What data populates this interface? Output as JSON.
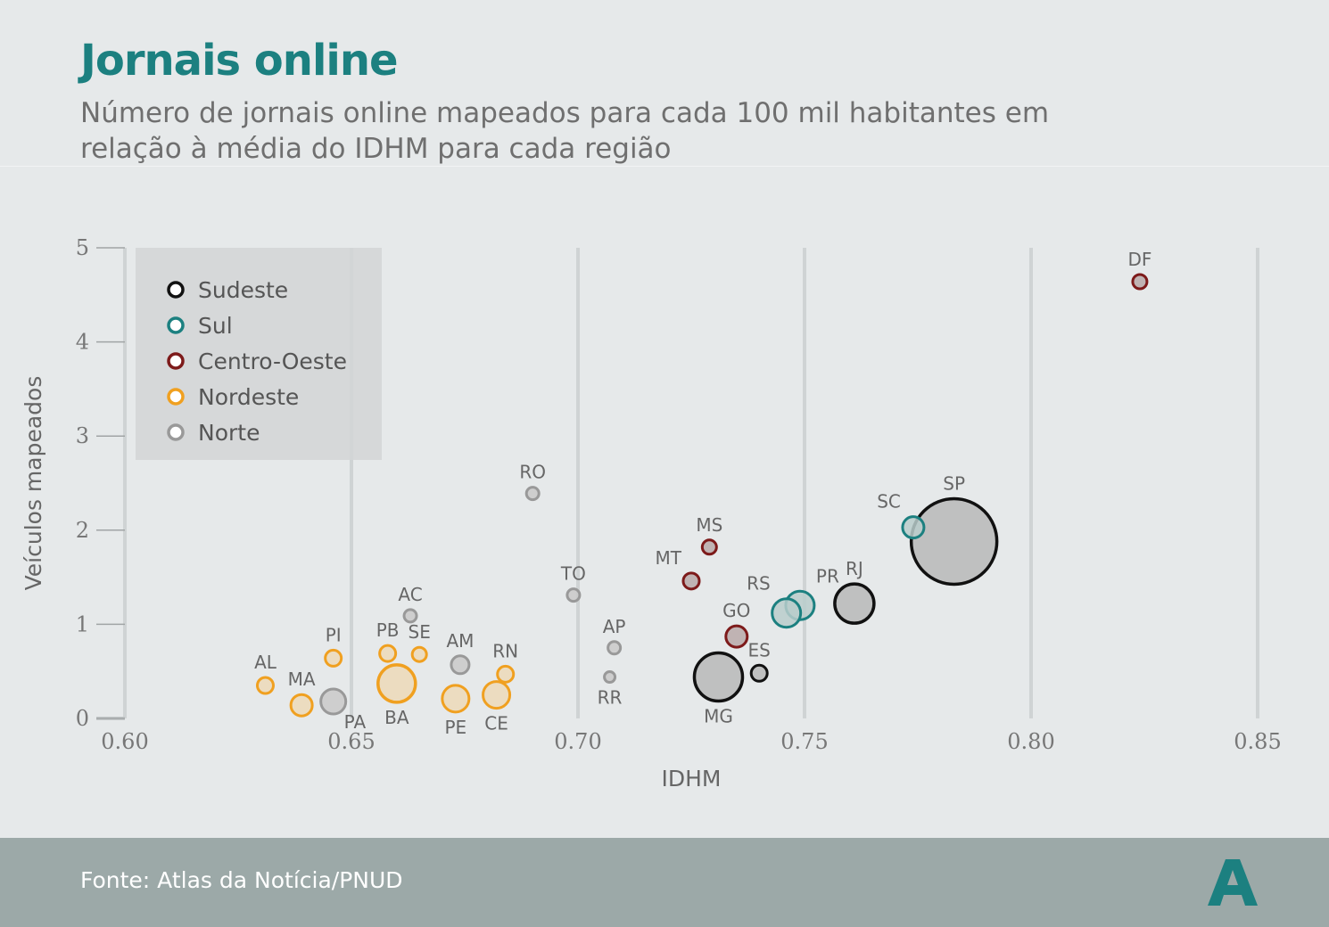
{
  "header": {
    "title": "Jornais online",
    "subtitle_lines": [
      "Número de jornais online mapeados para cada 100 mil habitantes em",
      "relação à média do IDHM para cada região"
    ]
  },
  "footer": {
    "source": "Fonte: Atlas da Notícia/PNUD",
    "logo_letter": "A",
    "logo_color": "#1c8080"
  },
  "colors": {
    "title": "#1c8080",
    "background": "#e6e9ea",
    "footer_bg": "#9ca9a8"
  },
  "chart_data": {
    "type": "scatter",
    "xlabel": "IDHM",
    "ylabel": "Veículos mapeados",
    "xlim": [
      0.6,
      0.85
    ],
    "ylim": [
      0,
      5
    ],
    "x_ticks": [
      "0.60",
      "0.65",
      "0.70",
      "0.75",
      "0.80",
      "0.85"
    ],
    "y_ticks": [
      "0",
      "1",
      "2",
      "3",
      "4",
      "5"
    ],
    "grid": "vertical",
    "legend_position": "top-left",
    "series": [
      {
        "name": "Sudeste",
        "stroke": "#111111",
        "fill": "#b7b8b8"
      },
      {
        "name": "Sul",
        "stroke": "#1c8080",
        "fill": "#b9cccb"
      },
      {
        "name": "Centro-Oeste",
        "stroke": "#7d1a1a",
        "fill": "#b8a9a9"
      },
      {
        "name": "Nordeste",
        "stroke": "#f0a020",
        "fill": "#ecd9b8"
      },
      {
        "name": "Norte",
        "stroke": "#999999",
        "fill": "#c9c9c9"
      }
    ],
    "points": [
      {
        "label": "SP",
        "region": "Sudeste",
        "x": 0.783,
        "y": 1.88,
        "size": 48,
        "label_pos": "above"
      },
      {
        "label": "RJ",
        "region": "Sudeste",
        "x": 0.761,
        "y": 1.22,
        "size": 22,
        "label_pos": "above"
      },
      {
        "label": "MG",
        "region": "Sudeste",
        "x": 0.731,
        "y": 0.44,
        "size": 27,
        "label_pos": "below"
      },
      {
        "label": "ES",
        "region": "Sudeste",
        "x": 0.74,
        "y": 0.48,
        "size": 9,
        "label_pos": "above"
      },
      {
        "label": "SC",
        "region": "Sul",
        "x": 0.774,
        "y": 2.03,
        "size": 12,
        "label_pos": "above-left"
      },
      {
        "label": "PR",
        "region": "Sul",
        "x": 0.749,
        "y": 1.2,
        "size": 16,
        "label_pos": "above-right"
      },
      {
        "label": "RS",
        "region": "Sul",
        "x": 0.746,
        "y": 1.12,
        "size": 16,
        "label_pos": "above-left"
      },
      {
        "label": "DF",
        "region": "Centro-Oeste",
        "x": 0.824,
        "y": 4.64,
        "size": 8,
        "label_pos": "above"
      },
      {
        "label": "MS",
        "region": "Centro-Oeste",
        "x": 0.729,
        "y": 1.82,
        "size": 8,
        "label_pos": "above"
      },
      {
        "label": "MT",
        "region": "Centro-Oeste",
        "x": 0.725,
        "y": 1.46,
        "size": 9,
        "label_pos": "above-left"
      },
      {
        "label": "GO",
        "region": "Centro-Oeste",
        "x": 0.735,
        "y": 0.87,
        "size": 12,
        "label_pos": "above"
      },
      {
        "label": "BA",
        "region": "Nordeste",
        "x": 0.66,
        "y": 0.37,
        "size": 21,
        "label_pos": "below"
      },
      {
        "label": "PE",
        "region": "Nordeste",
        "x": 0.673,
        "y": 0.21,
        "size": 15,
        "label_pos": "below"
      },
      {
        "label": "CE",
        "region": "Nordeste",
        "x": 0.682,
        "y": 0.25,
        "size": 15,
        "label_pos": "below"
      },
      {
        "label": "MA",
        "region": "Nordeste",
        "x": 0.639,
        "y": 0.14,
        "size": 12,
        "label_pos": "above"
      },
      {
        "label": "PB",
        "region": "Nordeste",
        "x": 0.658,
        "y": 0.69,
        "size": 9,
        "label_pos": "above"
      },
      {
        "label": "SE",
        "region": "Nordeste",
        "x": 0.665,
        "y": 0.68,
        "size": 8,
        "label_pos": "above"
      },
      {
        "label": "PI",
        "region": "Nordeste",
        "x": 0.646,
        "y": 0.64,
        "size": 9,
        "label_pos": "above"
      },
      {
        "label": "RN",
        "region": "Nordeste",
        "x": 0.684,
        "y": 0.47,
        "size": 9,
        "label_pos": "above"
      },
      {
        "label": "AL",
        "region": "Nordeste",
        "x": 0.631,
        "y": 0.35,
        "size": 9,
        "label_pos": "above"
      },
      {
        "label": "RO",
        "region": "Norte",
        "x": 0.69,
        "y": 2.39,
        "size": 7,
        "label_pos": "above"
      },
      {
        "label": "TO",
        "region": "Norte",
        "x": 0.699,
        "y": 1.31,
        "size": 7,
        "label_pos": "above"
      },
      {
        "label": "AC",
        "region": "Norte",
        "x": 0.663,
        "y": 1.09,
        "size": 7,
        "label_pos": "above"
      },
      {
        "label": "AP",
        "region": "Norte",
        "x": 0.708,
        "y": 0.75,
        "size": 7,
        "label_pos": "above"
      },
      {
        "label": "AM",
        "region": "Norte",
        "x": 0.674,
        "y": 0.57,
        "size": 10,
        "label_pos": "above"
      },
      {
        "label": "RR",
        "region": "Norte",
        "x": 0.707,
        "y": 0.44,
        "size": 6,
        "label_pos": "below"
      },
      {
        "label": "PA",
        "region": "Norte",
        "x": 0.646,
        "y": 0.18,
        "size": 14,
        "label_pos": "below-right"
      }
    ]
  }
}
